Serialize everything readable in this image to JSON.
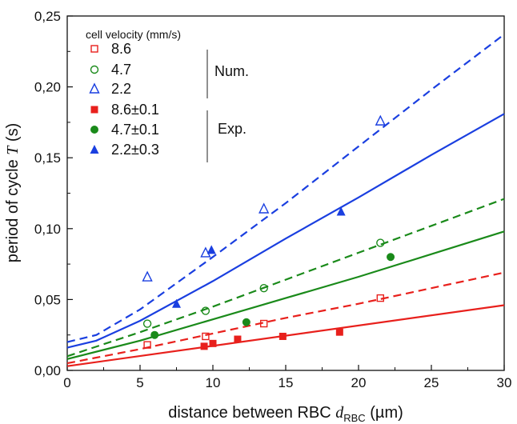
{
  "chart_data": {
    "type": "scatter",
    "title": "",
    "xlabel_prefix": "distance between RBC ",
    "xlabel_var": "d",
    "xlabel_sub": "RBC",
    "xlabel_unit": " (µm)",
    "ylabel_prefix": "period of cycle ",
    "ylabel_var": "T",
    "ylabel_unit": " (s)",
    "xlim": [
      0,
      30
    ],
    "ylim": [
      0,
      0.25
    ],
    "xticks": [
      0,
      5,
      10,
      15,
      20,
      25,
      30
    ],
    "xtick_labels": [
      "0",
      "5",
      "10",
      "15",
      "20",
      "25",
      "30"
    ],
    "yticks": [
      0,
      0.05,
      0.1,
      0.15,
      0.2,
      0.25
    ],
    "ytick_labels": [
      "0,00",
      "0,05",
      "0,10",
      "0,15",
      "0,20",
      "0,25"
    ],
    "grid": false,
    "legend_title": "cell velocity (mm/s)",
    "legend_group_num": "Num.",
    "legend_group_exp": "Exp.",
    "legend_placement": "top-left",
    "series": [
      {
        "name": "8.6",
        "kind": "numerical",
        "marker": "square-open",
        "color": "#e8201c",
        "x": [
          5.5,
          9.5,
          13.5,
          21.5
        ],
        "y": [
          0.018,
          0.024,
          0.033,
          0.051
        ]
      },
      {
        "name": "4.7",
        "kind": "numerical",
        "marker": "circle-open",
        "color": "#1a8a1a",
        "x": [
          5.5,
          9.5,
          13.5,
          21.5
        ],
        "y": [
          0.033,
          0.042,
          0.058,
          0.09
        ]
      },
      {
        "name": "2.2",
        "kind": "numerical",
        "marker": "triangle-open",
        "color": "#1a3fe0",
        "x": [
          5.5,
          9.5,
          13.5,
          21.5
        ],
        "y": [
          0.066,
          0.083,
          0.114,
          0.176
        ]
      },
      {
        "name": "8.6±0.1",
        "kind": "experimental",
        "marker": "square-filled",
        "color": "#e8201c",
        "x": [
          9.4,
          10.0,
          11.7,
          14.8,
          18.7
        ],
        "y": [
          0.017,
          0.019,
          0.022,
          0.024,
          0.027
        ]
      },
      {
        "name": "4.7±0.1",
        "kind": "experimental",
        "marker": "circle-filled",
        "color": "#1a8a1a",
        "x": [
          6.0,
          12.3,
          22.2
        ],
        "y": [
          0.025,
          0.034,
          0.08
        ]
      },
      {
        "name": "2.2±0.3",
        "kind": "experimental",
        "marker": "triangle-filled",
        "color": "#1a3fe0",
        "x": [
          7.5,
          9.9,
          18.8
        ],
        "y": [
          0.047,
          0.085,
          0.112
        ]
      }
    ],
    "fits": [
      {
        "for": "8.6",
        "style": "dashed",
        "color": "#e8201c",
        "x": [
          0,
          5,
          10,
          15,
          20,
          25,
          30
        ],
        "y": [
          0.005,
          0.015,
          0.026,
          0.037,
          0.047,
          0.058,
          0.069
        ]
      },
      {
        "for": "4.7",
        "style": "dashed",
        "color": "#1a8a1a",
        "x": [
          0,
          5,
          10,
          15,
          20,
          25,
          30
        ],
        "y": [
          0.01,
          0.027,
          0.045,
          0.064,
          0.083,
          0.102,
          0.121
        ]
      },
      {
        "for": "2.2",
        "style": "dashed",
        "color": "#1a3fe0",
        "x": [
          0,
          2,
          5,
          10,
          15,
          20,
          25,
          30
        ],
        "y": [
          0.02,
          0.025,
          0.043,
          0.08,
          0.118,
          0.158,
          0.198,
          0.237
        ]
      },
      {
        "for": "8.6±0.1",
        "style": "solid",
        "color": "#e8201c",
        "x": [
          0,
          30
        ],
        "y": [
          0.003,
          0.046
        ]
      },
      {
        "for": "4.7±0.1",
        "style": "solid",
        "color": "#1a8a1a",
        "x": [
          0,
          5,
          10,
          15,
          20,
          25,
          30
        ],
        "y": [
          0.008,
          0.021,
          0.036,
          0.051,
          0.066,
          0.082,
          0.098
        ]
      },
      {
        "for": "2.2±0.3",
        "style": "solid",
        "color": "#1a3fe0",
        "x": [
          0,
          2,
          5,
          10,
          15,
          20,
          25,
          30
        ],
        "y": [
          0.016,
          0.021,
          0.035,
          0.063,
          0.093,
          0.122,
          0.152,
          0.181
        ]
      }
    ]
  }
}
